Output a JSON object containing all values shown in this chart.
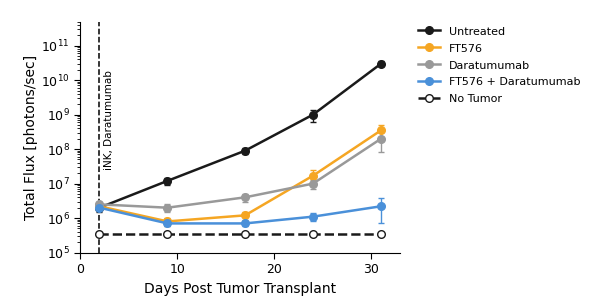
{
  "xlabel": "Days Post Tumor Transplant",
  "ylabel": "Total Flux [photons/sec]",
  "xlim": [
    0,
    33
  ],
  "ylim_log": [
    100000.0,
    500000000000.0
  ],
  "xticks": [
    0,
    10,
    20,
    30
  ],
  "dashed_line_x": 2,
  "dashed_line_label": "iNK, Daratumumab",
  "untreated": {
    "x": [
      2,
      9,
      17,
      24,
      31
    ],
    "y": [
      2000000.0,
      12000000.0,
      90000000.0,
      1000000000.0,
      30000000000.0
    ],
    "yerr_low": [
      500000.0,
      3000000.0,
      20000000.0,
      400000000.0,
      5000000000.0
    ],
    "yerr_high": [
      500000.0,
      3000000.0,
      20000000.0,
      400000000.0,
      5000000000.0
    ],
    "color": "#1a1a1a",
    "label": "Untreated"
  },
  "ft576": {
    "x": [
      2,
      9,
      17,
      24,
      31
    ],
    "y": [
      2200000.0,
      800000.0,
      1200000.0,
      17000000.0,
      350000000.0
    ],
    "yerr_low": [
      400000.0,
      200000.0,
      300000.0,
      8000000.0,
      150000000.0
    ],
    "yerr_high": [
      400000.0,
      200000.0,
      300000.0,
      8000000.0,
      150000000.0
    ],
    "color": "#f5a623",
    "label": "FT576"
  },
  "daratumumab": {
    "x": [
      2,
      9,
      17,
      24,
      31
    ],
    "y": [
      2500000.0,
      2000000.0,
      4000000.0,
      10000000.0,
      200000000.0
    ],
    "yerr_low": [
      500000.0,
      500000.0,
      1000000.0,
      3000000.0,
      120000000.0
    ],
    "yerr_high": [
      500000.0,
      500000.0,
      1000000.0,
      3000000.0,
      120000000.0
    ],
    "color": "#999999",
    "label": "Daratumumab"
  },
  "ft576_dara": {
    "x": [
      2,
      9,
      17,
      24,
      31
    ],
    "y": [
      2000000.0,
      700000.0,
      700000.0,
      1100000.0,
      2200000.0
    ],
    "yerr_low": [
      300000.0,
      100000.0,
      100000.0,
      300000.0,
      1500000.0
    ],
    "yerr_high": [
      300000.0,
      100000.0,
      100000.0,
      300000.0,
      1500000.0
    ],
    "color": "#4a90d9",
    "label": "FT576 + Daratumumab"
  },
  "no_tumor": {
    "x": [
      2,
      9,
      17,
      24,
      31
    ],
    "y": [
      350000.0,
      350000.0,
      350000.0,
      350000.0,
      350000.0
    ],
    "color": "#1a1a1a",
    "label": "No Tumor"
  }
}
